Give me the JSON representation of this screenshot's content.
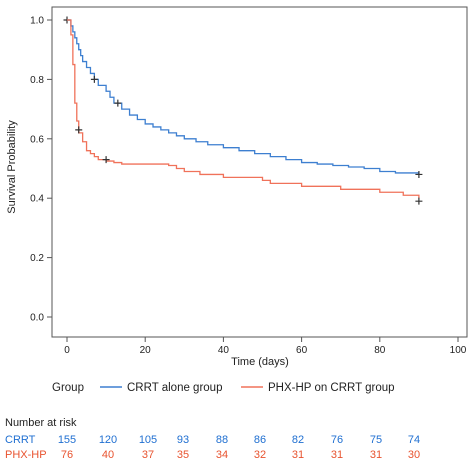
{
  "chart_data": {
    "type": "line",
    "subtype": "kaplan-meier",
    "xlabel": "Time (days)",
    "ylabel": "Survival  Probability",
    "xlim": [
      0,
      100
    ],
    "ylim": [
      0,
      1
    ],
    "x_ticks": [
      0,
      20,
      40,
      60,
      80,
      100
    ],
    "y_ticks": [
      0.0,
      0.2,
      0.4,
      0.6,
      0.8,
      1.0
    ],
    "y_tick_labels": [
      "0.0",
      "0.2",
      "0.4",
      "0.6",
      "0.8",
      "1.0"
    ],
    "grid": false,
    "legend": {
      "title": "Group",
      "placement": "bottom",
      "entries": [
        "CRRT alone group",
        "PHX-HP on CRRT group"
      ]
    },
    "series": [
      {
        "name": "CRRT alone group",
        "color": "#3d7fd0",
        "x": [
          0,
          1,
          1.5,
          2,
          2.5,
          3,
          3.5,
          4,
          5,
          6,
          7,
          8,
          10,
          11,
          12,
          14,
          16,
          18,
          20,
          22,
          24,
          26,
          28,
          30,
          33,
          36,
          40,
          44,
          48,
          52,
          56,
          60,
          64,
          68,
          72,
          76,
          80,
          84,
          90
        ],
        "y": [
          1.0,
          0.98,
          0.96,
          0.94,
          0.92,
          0.9,
          0.88,
          0.86,
          0.84,
          0.82,
          0.8,
          0.78,
          0.76,
          0.74,
          0.72,
          0.7,
          0.68,
          0.665,
          0.65,
          0.64,
          0.63,
          0.62,
          0.61,
          0.6,
          0.59,
          0.58,
          0.57,
          0.56,
          0.55,
          0.54,
          0.53,
          0.52,
          0.515,
          0.51,
          0.505,
          0.5,
          0.49,
          0.485,
          0.48
        ],
        "censored": [
          [
            0,
            1.0
          ],
          [
            7,
            0.8
          ],
          [
            13,
            0.72
          ],
          [
            90,
            0.48
          ]
        ]
      },
      {
        "name": "PHX-HP on CRRT group",
        "color": "#f0725a",
        "x": [
          0,
          1,
          1.5,
          2,
          2.5,
          3,
          4,
          5,
          6,
          7,
          8,
          10,
          12,
          14,
          20,
          26,
          28,
          30,
          34,
          40,
          48,
          50,
          52,
          60,
          70,
          80,
          86,
          90
        ],
        "y": [
          1.0,
          0.95,
          0.85,
          0.72,
          0.66,
          0.62,
          0.59,
          0.56,
          0.55,
          0.54,
          0.53,
          0.525,
          0.52,
          0.515,
          0.515,
          0.51,
          0.5,
          0.49,
          0.48,
          0.47,
          0.47,
          0.46,
          0.45,
          0.44,
          0.43,
          0.42,
          0.41,
          0.4
        ],
        "censored": [
          [
            3,
            0.63
          ],
          [
            10,
            0.53
          ],
          [
            90,
            0.39
          ]
        ]
      }
    ],
    "risk_table": {
      "title": "Number at risk",
      "rows": [
        {
          "label": "CRRT",
          "color": "#1f6fd1",
          "values": [
            "155",
            "120",
            "105",
            "93",
            "88",
            "86",
            "82",
            "76",
            "75",
            "74"
          ]
        },
        {
          "label": "PHX-HP",
          "color": "#e8532f",
          "values": [
            "76",
            "40",
            "37",
            "35",
            "34",
            "32",
            "31",
            "31",
            "31",
            "30"
          ]
        }
      ]
    }
  }
}
